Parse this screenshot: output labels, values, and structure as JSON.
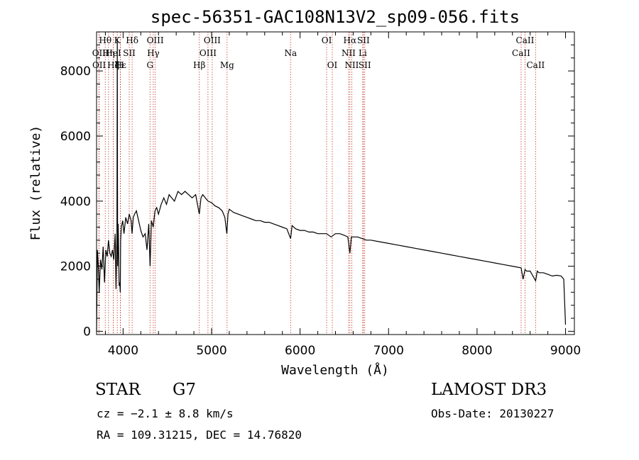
{
  "chart_data": {
    "type": "line",
    "title": "spec-56351-GAC108N13V2_sp09-056.fits",
    "xlabel": "Wavelength (Å)",
    "ylabel": "Flux (relative)",
    "xlim": [
      3700,
      9100
    ],
    "ylim": [
      -100,
      9200
    ],
    "xticks": [
      4000,
      5000,
      6000,
      7000,
      8000,
      9000
    ],
    "yticks": [
      0,
      2000,
      4000,
      6000,
      8000
    ],
    "grid": false,
    "series": [
      {
        "name": "flux",
        "x": [
          3700,
          3710,
          3720,
          3730,
          3745,
          3760,
          3775,
          3790,
          3805,
          3820,
          3835,
          3850,
          3865,
          3880,
          3895,
          3910,
          3920,
          3930,
          3934,
          3938,
          3945,
          3955,
          3962,
          3968,
          3972,
          3980,
          3995,
          4010,
          4030,
          4050,
          4070,
          4090,
          4101,
          4115,
          4130,
          4150,
          4175,
          4200,
          4225,
          4250,
          4270,
          4290,
          4305,
          4320,
          4340,
          4360,
          4380,
          4400,
          4430,
          4460,
          4490,
          4520,
          4550,
          4580,
          4620,
          4660,
          4700,
          4740,
          4780,
          4820,
          4861,
          4880,
          4900,
          4930,
          4960,
          5000,
          5040,
          5080,
          5120,
          5150,
          5172,
          5185,
          5200,
          5250,
          5300,
          5350,
          5400,
          5450,
          5500,
          5550,
          5600,
          5650,
          5700,
          5750,
          5800,
          5850,
          5893,
          5910,
          5950,
          6000,
          6050,
          6100,
          6150,
          6200,
          6250,
          6300,
          6350,
          6400,
          6450,
          6500,
          6540,
          6563,
          6580,
          6600,
          6650,
          6700,
          6750,
          6800,
          6900,
          7000,
          7100,
          7200,
          7300,
          7400,
          7500,
          7600,
          7700,
          7800,
          7900,
          8000,
          8100,
          8200,
          8300,
          8400,
          8498,
          8520,
          8542,
          8560,
          8600,
          8662,
          8680,
          8700,
          8750,
          8800,
          8850,
          8900,
          8950,
          8980,
          9000
        ],
        "values": [
          0,
          2500,
          2000,
          1200,
          2200,
          1900,
          2600,
          1500,
          2500,
          2300,
          2800,
          2400,
          2300,
          2500,
          2200,
          3000,
          1300,
          3000,
          9000,
          2000,
          3300,
          1400,
          1500,
          1200,
          2800,
          3200,
          3400,
          3000,
          3500,
          3300,
          3600,
          3400,
          3000,
          3500,
          3600,
          3700,
          3400,
          3100,
          2900,
          3000,
          2500,
          3300,
          2000,
          3400,
          3200,
          3700,
          3800,
          3600,
          3900,
          4100,
          3900,
          4200,
          4100,
          4000,
          4300,
          4200,
          4300,
          4200,
          4100,
          4200,
          3600,
          4100,
          4200,
          4100,
          4000,
          3950,
          3850,
          3800,
          3700,
          3500,
          3000,
          3600,
          3750,
          3650,
          3600,
          3550,
          3500,
          3450,
          3400,
          3400,
          3350,
          3350,
          3300,
          3250,
          3200,
          3150,
          2850,
          3250,
          3150,
          3100,
          3100,
          3050,
          3050,
          3000,
          3000,
          3000,
          2900,
          3000,
          3000,
          2950,
          2900,
          2400,
          2900,
          2900,
          2900,
          2850,
          2800,
          2800,
          2750,
          2700,
          2650,
          2600,
          2550,
          2500,
          2450,
          2400,
          2350,
          2300,
          2250,
          2200,
          2150,
          2100,
          2050,
          2000,
          1950,
          1600,
          1900,
          1850,
          1850,
          1550,
          1850,
          1800,
          1800,
          1750,
          1700,
          1720,
          1700,
          1600,
          200
        ]
      }
    ],
    "lines": [
      {
        "label": "Hθ",
        "x": 3798,
        "row": 1
      },
      {
        "label": "OII",
        "x": 3727,
        "row": 2
      },
      {
        "label": "OII",
        "x": 3729,
        "row": 3
      },
      {
        "label": "K",
        "x": 3934,
        "row": 1
      },
      {
        "label": "Hη",
        "x": 3835,
        "row": 2
      },
      {
        "label": "Hζ",
        "x": 3889,
        "row": 3
      },
      {
        "label": "HeI",
        "x": 3889,
        "row": 2
      },
      {
        "label": "Hε",
        "x": 3970,
        "row": 3
      },
      {
        "label": "SII",
        "x": 4069,
        "row": 2
      },
      {
        "label": "Hδ",
        "x": 4102,
        "row": 1
      },
      {
        "label": "H",
        "x": 3968,
        "row": 3
      },
      {
        "label": "OIII",
        "x": 4363,
        "row": 1
      },
      {
        "label": "Hγ",
        "x": 4341,
        "row": 2
      },
      {
        "label": "G",
        "x": 4304,
        "row": 3
      },
      {
        "label": "OIII",
        "x": 5007,
        "row": 1
      },
      {
        "label": "OIII",
        "x": 4959,
        "row": 2
      },
      {
        "label": "Hβ",
        "x": 4861,
        "row": 3
      },
      {
        "label": "Mg",
        "x": 5175,
        "row": 3
      },
      {
        "label": "Na",
        "x": 5893,
        "row": 2
      },
      {
        "label": "OI",
        "x": 6300,
        "row": 1
      },
      {
        "label": "OI",
        "x": 6364,
        "row": 3
      },
      {
        "label": "Hα",
        "x": 6563,
        "row": 1
      },
      {
        "label": "SII",
        "x": 6716,
        "row": 1
      },
      {
        "label": "NII",
        "x": 6548,
        "row": 2
      },
      {
        "label": "Li",
        "x": 6708,
        "row": 2
      },
      {
        "label": "NII",
        "x": 6584,
        "row": 3
      },
      {
        "label": "SII",
        "x": 6731,
        "row": 3
      },
      {
        "label": "CaII",
        "x": 8542,
        "row": 1
      },
      {
        "label": "CaII",
        "x": 8498,
        "row": 2
      },
      {
        "label": "CaII",
        "x": 8662,
        "row": 3
      }
    ]
  },
  "info": {
    "object_class": "STAR",
    "subclass": "G7",
    "survey": "LAMOST DR3",
    "cz": "cz = −2.1 ± 8.8 km/s",
    "obs_date": "Obs-Date: 20130227",
    "coords": "RA = 109.31215, DEC =  14.76820"
  }
}
